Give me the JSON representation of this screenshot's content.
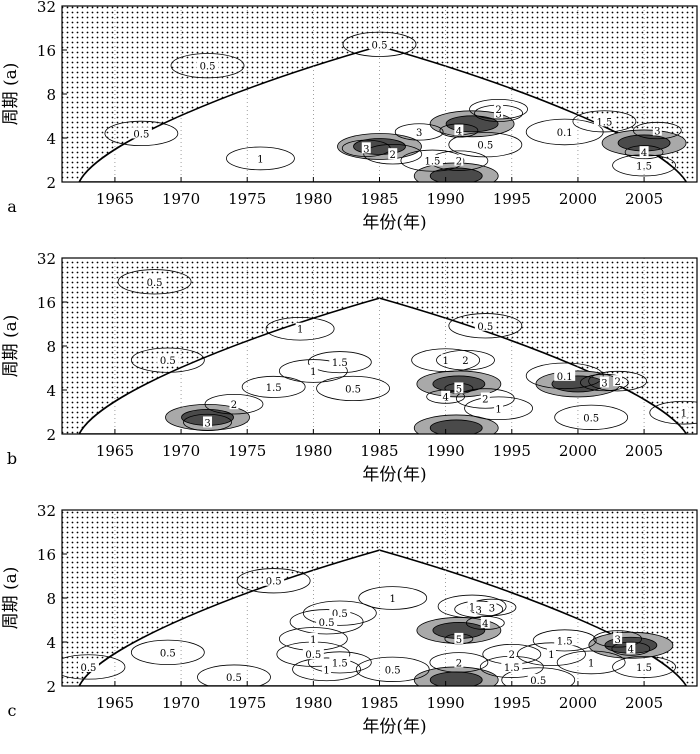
{
  "chart_data": [
    {
      "type": "heatmap",
      "panel_label": "a",
      "xlabel": "年份(年)",
      "ylabel": "周期 (a)",
      "x_ticks": [
        1965,
        1970,
        1975,
        1980,
        1985,
        1990,
        1995,
        2000,
        2005
      ],
      "y_ticks": [
        2,
        4,
        8,
        16,
        32
      ],
      "xlim": [
        1961,
        2009
      ],
      "ylim": [
        2,
        32
      ],
      "y_scale": "log2",
      "cone_peak_year": 1985,
      "contours": [
        {
          "x": 1984,
          "y": 3.4,
          "level": 3,
          "label": "3"
        },
        {
          "x": 1988,
          "y": 4.4,
          "level": 3,
          "label": "3"
        },
        {
          "x": 1991,
          "y": 4.5,
          "level": 4,
          "label": "4"
        },
        {
          "x": 1994,
          "y": 5.9,
          "level": 3,
          "label": "3"
        },
        {
          "x": 1994,
          "y": 6.3,
          "level": 2,
          "label": "2"
        },
        {
          "x": 2006,
          "y": 4.5,
          "level": 3,
          "label": "3"
        },
        {
          "x": 2005,
          "y": 3.2,
          "level": 4,
          "label": "4"
        },
        {
          "x": 1991,
          "y": 2.8,
          "level": 2,
          "label": "2"
        },
        {
          "x": 1986,
          "y": 3.1,
          "level": 2,
          "label": "2"
        },
        {
          "x": 1989,
          "y": 2.8,
          "level": 1.5,
          "label": "1.5"
        },
        {
          "x": 1976,
          "y": 2.9,
          "level": 1,
          "label": "1"
        },
        {
          "x": 1967,
          "y": 4.3,
          "level": 0.5,
          "label": "0.5"
        },
        {
          "x": 1993,
          "y": 3.6,
          "level": 0.5,
          "label": "0.5"
        },
        {
          "x": 1999,
          "y": 4.4,
          "level": 0.1,
          "label": "0.1"
        },
        {
          "x": 2002,
          "y": 5.2,
          "level": 1.5,
          "label": "1.5"
        },
        {
          "x": 2005,
          "y": 2.6,
          "level": 1.5,
          "label": "1.5"
        },
        {
          "x": 1985,
          "y": 17.5,
          "level": 0.5,
          "label": "0.5"
        },
        {
          "x": 1972,
          "y": 12.5,
          "level": 0.5,
          "label": "0.5"
        }
      ],
      "regions": [
        {
          "x": 1985,
          "y": 3.5,
          "level": 3
        },
        {
          "x": 1992,
          "y": 5,
          "level": 3
        },
        {
          "x": 2005,
          "y": 3.7,
          "level": 3
        },
        {
          "x": 1990.8,
          "y": 2.2,
          "level": 3
        }
      ]
    },
    {
      "type": "heatmap",
      "panel_label": "b",
      "xlabel": "年份(年)",
      "ylabel": "周期 (a)",
      "x_ticks": [
        1965,
        1970,
        1975,
        1980,
        1985,
        1990,
        1995,
        2000,
        2005
      ],
      "y_ticks": [
        2,
        4,
        8,
        16,
        32
      ],
      "xlim": [
        1961,
        2009
      ],
      "ylim": [
        2,
        32
      ],
      "y_scale": "log2",
      "cone_peak_year": 1985,
      "contours": [
        {
          "x": 1968,
          "y": 22,
          "level": 0.5,
          "label": "0.5"
        },
        {
          "x": 1979,
          "y": 10.5,
          "level": 1,
          "label": "1"
        },
        {
          "x": 1993,
          "y": 11,
          "level": 0.5,
          "label": "0.5"
        },
        {
          "x": 1969,
          "y": 6.4,
          "level": 0.5,
          "label": "0.5"
        },
        {
          "x": 1982,
          "y": 6.2,
          "level": 1.5,
          "label": "1.5"
        },
        {
          "x": 1980,
          "y": 5.4,
          "level": 1,
          "label": "1"
        },
        {
          "x": 1990,
          "y": 6.4,
          "level": 1,
          "label": "1"
        },
        {
          "x": 1991.5,
          "y": 6.4,
          "level": 2,
          "label": "2"
        },
        {
          "x": 1977,
          "y": 4.2,
          "level": 1.5,
          "label": "1.5"
        },
        {
          "x": 1983,
          "y": 4.1,
          "level": 0.5,
          "label": "0.5"
        },
        {
          "x": 1974,
          "y": 3.2,
          "level": 2,
          "label": "2"
        },
        {
          "x": 1972,
          "y": 2.4,
          "level": 3,
          "label": "3"
        },
        {
          "x": 1991,
          "y": 4.1,
          "level": 5,
          "label": "5"
        },
        {
          "x": 1990,
          "y": 3.6,
          "level": 4,
          "label": "4"
        },
        {
          "x": 1993,
          "y": 3.5,
          "level": 2,
          "label": "2"
        },
        {
          "x": 1994,
          "y": 3,
          "level": 1,
          "label": "1"
        },
        {
          "x": 1999,
          "y": 5,
          "level": 0.1,
          "label": "0.1"
        },
        {
          "x": 2002,
          "y": 4.5,
          "level": 3,
          "label": "3"
        },
        {
          "x": 2003,
          "y": 4.6,
          "level": 2,
          "label": "2"
        },
        {
          "x": 2001,
          "y": 2.6,
          "level": 0.5,
          "label": "0.5"
        },
        {
          "x": 2008,
          "y": 2.8,
          "level": 1,
          "label": "1"
        }
      ],
      "regions": [
        {
          "x": 1991,
          "y": 4.4,
          "level": 3
        },
        {
          "x": 2000,
          "y": 4.4,
          "level": 3
        },
        {
          "x": 1972,
          "y": 2.6,
          "level": 3
        },
        {
          "x": 1990.8,
          "y": 2.2,
          "level": 3
        }
      ]
    },
    {
      "type": "heatmap",
      "panel_label": "c",
      "xlabel": "年份(年)",
      "ylabel": "周期 (a)",
      "x_ticks": [
        1965,
        1970,
        1975,
        1980,
        1985,
        1990,
        1995,
        2000,
        2005
      ],
      "y_ticks": [
        2,
        4,
        8,
        16,
        32
      ],
      "xlim": [
        1961,
        2009
      ],
      "ylim": [
        2,
        32
      ],
      "y_scale": "log2",
      "cone_peak_year": 1985,
      "contours": [
        {
          "x": 1977,
          "y": 10.5,
          "level": 0.5,
          "label": "0.5"
        },
        {
          "x": 1986,
          "y": 8,
          "level": 1,
          "label": "1"
        },
        {
          "x": 1982,
          "y": 6.3,
          "level": 0.5,
          "label": "0.5"
        },
        {
          "x": 1981,
          "y": 5.5,
          "level": 0.5,
          "label": "0.5"
        },
        {
          "x": 1980,
          "y": 4.2,
          "level": 1,
          "label": "1"
        },
        {
          "x": 1980,
          "y": 3.3,
          "level": 0.5,
          "label": "0.5"
        },
        {
          "x": 1969,
          "y": 3.4,
          "level": 0.5,
          "label": "0.5"
        },
        {
          "x": 1963,
          "y": 2.7,
          "level": 0.5,
          "label": "0.5"
        },
        {
          "x": 1974,
          "y": 2.3,
          "level": 0.5,
          "label": "0.5"
        },
        {
          "x": 1982,
          "y": 2.9,
          "level": 1.5,
          "label": "1.5"
        },
        {
          "x": 1981,
          "y": 2.6,
          "level": 1,
          "label": "1"
        },
        {
          "x": 1986,
          "y": 2.6,
          "level": 0.5,
          "label": "0.5"
        },
        {
          "x": 1992,
          "y": 7,
          "level": 1,
          "label": "1"
        },
        {
          "x": 1992.5,
          "y": 6.7,
          "level": 3,
          "label": "3"
        },
        {
          "x": 1993.5,
          "y": 6.9,
          "level": 3,
          "label": "3"
        },
        {
          "x": 1991,
          "y": 4.2,
          "level": 5,
          "label": "5"
        },
        {
          "x": 1993,
          "y": 5.4,
          "level": 4,
          "label": "4"
        },
        {
          "x": 1991,
          "y": 2.9,
          "level": 2,
          "label": "2"
        },
        {
          "x": 1995,
          "y": 3.3,
          "level": 2,
          "label": "2"
        },
        {
          "x": 1995,
          "y": 2.7,
          "level": 1.5,
          "label": "1.5"
        },
        {
          "x": 1998,
          "y": 3.3,
          "level": 1,
          "label": "1"
        },
        {
          "x": 1997,
          "y": 2.2,
          "level": 0.5,
          "label": "0.5"
        },
        {
          "x": 1999,
          "y": 4.1,
          "level": 1.5,
          "label": "1.5"
        },
        {
          "x": 2003,
          "y": 4.2,
          "level": 3,
          "label": "3"
        },
        {
          "x": 2004,
          "y": 3.6,
          "level": 4,
          "label": "4"
        },
        {
          "x": 2005,
          "y": 2.7,
          "level": 1.5,
          "label": "1.5"
        },
        {
          "x": 2001,
          "y": 2.9,
          "level": 1,
          "label": "1"
        }
      ],
      "regions": [
        {
          "x": 1991,
          "y": 4.8,
          "level": 3
        },
        {
          "x": 2004,
          "y": 3.8,
          "level": 3
        },
        {
          "x": 1990.8,
          "y": 2.2,
          "level": 3
        }
      ]
    }
  ]
}
